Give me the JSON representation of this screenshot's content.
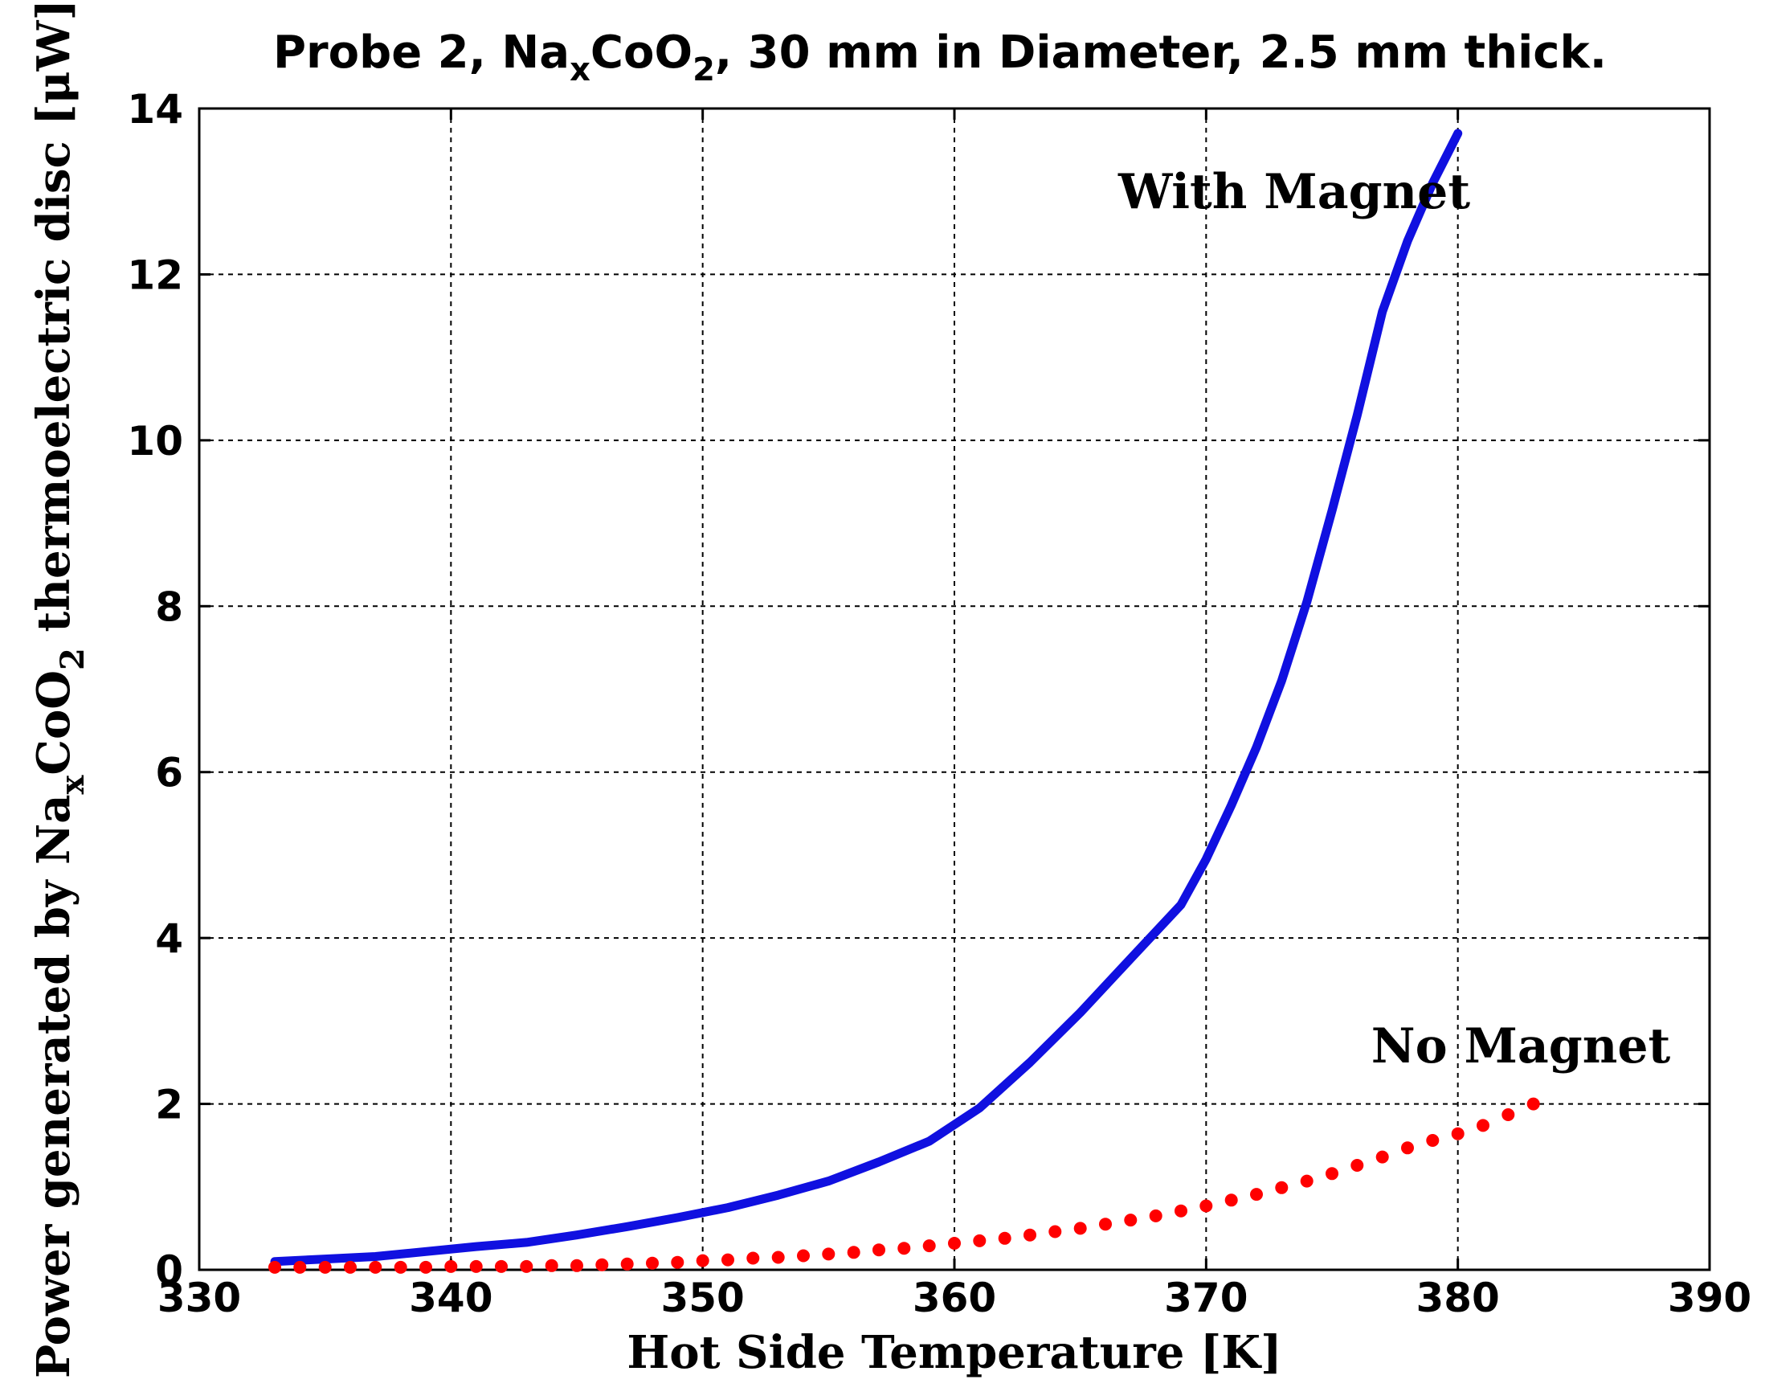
{
  "chart_data": {
    "type": "line",
    "title": {
      "prefix": "Probe 2, Na",
      "sub1": "x",
      "mid": "CoO",
      "sub2": "2",
      "suffix": ", 30 mm in Diameter, 2.5 mm thick."
    },
    "xlabel": "Hot Side Temperature [K]",
    "ylabel": {
      "prefix": "Power generated by Na",
      "sub1": "x",
      "mid": "CoO",
      "sub2": "2",
      "suffix": " thermoelectric disc  [μW]"
    },
    "xlim": [
      330,
      390
    ],
    "ylim": [
      0,
      14
    ],
    "xticks": [
      330,
      340,
      350,
      360,
      370,
      380,
      390
    ],
    "yticks": [
      0,
      2,
      4,
      6,
      8,
      10,
      12,
      14
    ],
    "grid": true,
    "series": [
      {
        "name": "With Magnet",
        "style": "solid",
        "color": "#1010e0",
        "x": [
          333,
          335,
          337,
          339,
          341,
          343,
          345,
          347,
          349,
          351,
          353,
          355,
          357,
          359,
          361,
          363,
          365,
          367,
          369,
          370,
          371,
          372,
          373,
          374,
          375,
          376,
          377,
          378,
          379,
          380
        ],
        "y": [
          0.1,
          0.13,
          0.16,
          0.22,
          0.28,
          0.33,
          0.42,
          0.52,
          0.63,
          0.75,
          0.9,
          1.07,
          1.3,
          1.55,
          1.95,
          2.5,
          3.1,
          3.75,
          4.4,
          4.95,
          5.6,
          6.3,
          7.1,
          8.05,
          9.15,
          10.3,
          11.55,
          12.4,
          13.1,
          13.7
        ]
      },
      {
        "name": "No Magnet",
        "style": "dotted",
        "color": "#ff0000",
        "x": [
          333,
          334,
          335,
          336,
          337,
          338,
          339,
          340,
          341,
          342,
          343,
          344,
          345,
          346,
          347,
          348,
          349,
          350,
          351,
          352,
          353,
          354,
          355,
          356,
          357,
          358,
          359,
          360,
          361,
          362,
          363,
          364,
          365,
          366,
          367,
          368,
          369,
          370,
          371,
          372,
          373,
          374,
          375,
          376,
          377,
          378,
          379,
          380,
          381,
          382,
          383
        ],
        "y": [
          0.03,
          0.03,
          0.03,
          0.03,
          0.03,
          0.03,
          0.03,
          0.04,
          0.04,
          0.04,
          0.04,
          0.05,
          0.05,
          0.06,
          0.07,
          0.08,
          0.09,
          0.11,
          0.12,
          0.14,
          0.15,
          0.17,
          0.19,
          0.21,
          0.24,
          0.26,
          0.29,
          0.32,
          0.35,
          0.38,
          0.42,
          0.46,
          0.5,
          0.55,
          0.6,
          0.65,
          0.71,
          0.77,
          0.84,
          0.91,
          0.99,
          1.07,
          1.16,
          1.26,
          1.36,
          1.47,
          1.56,
          1.64,
          1.74,
          1.87,
          2.0
        ]
      }
    ],
    "annotations": [
      {
        "text": "With Magnet",
        "x": 373.5,
        "y": 12.8
      },
      {
        "text": "No Magnet",
        "x": 382.5,
        "y": 2.5
      }
    ]
  }
}
